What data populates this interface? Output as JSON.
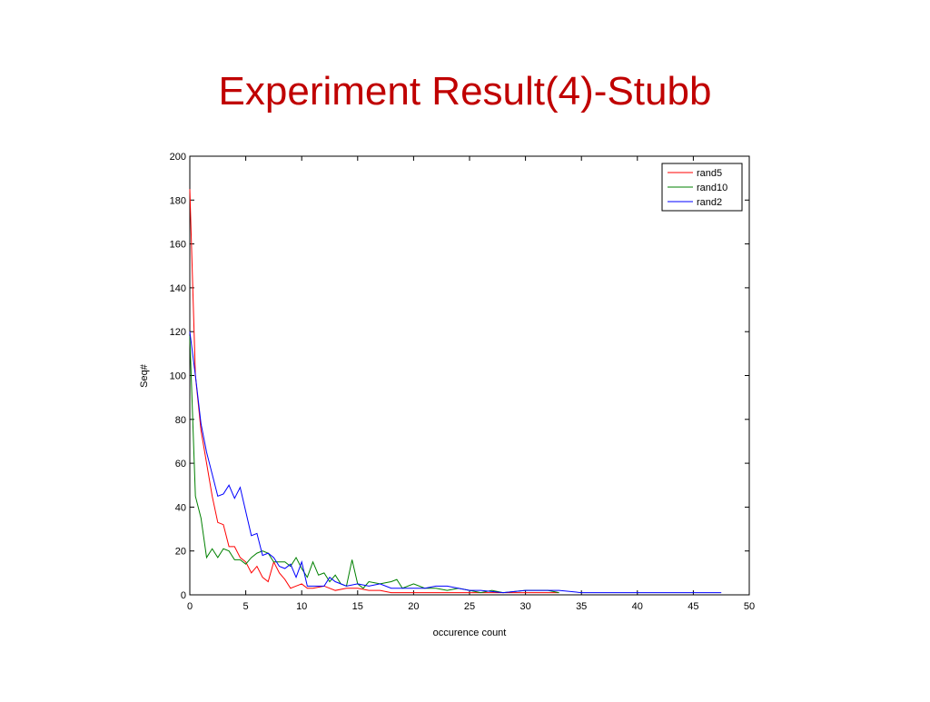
{
  "chart_data": {
    "type": "line",
    "title": "Experiment Result(4)-Stubb",
    "x_label": "occurence count",
    "y_label": "Seq#",
    "xlim": [
      0,
      50
    ],
    "ylim": [
      0,
      200
    ],
    "xticks": [
      0,
      5,
      10,
      15,
      20,
      25,
      30,
      35,
      40,
      45,
      50
    ],
    "yticks": [
      0,
      20,
      40,
      60,
      80,
      100,
      120,
      140,
      160,
      180,
      200
    ],
    "grid": false,
    "legend": "top-right",
    "series": [
      {
        "name": "rand5",
        "color": "#ff0000",
        "x": [
          0,
          0.5,
          1,
          1.5,
          2,
          2.5,
          3,
          3.5,
          4,
          4.5,
          5,
          5.5,
          6,
          6.5,
          7,
          7.5,
          8,
          8.5,
          9,
          9.5,
          10,
          10.5,
          11,
          12,
          13,
          14,
          15,
          16,
          17,
          18,
          20,
          22,
          25,
          28,
          30,
          33
        ],
        "values": [
          185,
          100,
          75,
          60,
          45,
          33,
          32,
          22,
          22,
          17,
          15,
          10,
          13,
          8,
          6,
          15,
          10,
          7,
          3,
          4,
          5,
          3,
          3,
          4,
          2,
          3,
          3,
          2,
          2,
          1,
          1,
          1,
          1,
          1,
          1,
          1
        ]
      },
      {
        "name": "rand10",
        "color": "#008000",
        "x": [
          0,
          0.5,
          1,
          1.5,
          2,
          2.5,
          3,
          3.5,
          4,
          4.5,
          5,
          5.5,
          6,
          6.5,
          7,
          7.5,
          8,
          8.5,
          9,
          9.5,
          10,
          10.5,
          11,
          11.5,
          12,
          12.5,
          13,
          13.5,
          14,
          14.5,
          15,
          15.5,
          16,
          17,
          18,
          18.5,
          19,
          20,
          21,
          22,
          23,
          24,
          25,
          26,
          27,
          28,
          30,
          32,
          33
        ],
        "values": [
          118,
          45,
          35,
          17,
          21,
          17,
          21,
          20,
          16,
          16,
          14,
          17,
          19,
          20,
          19,
          15,
          15,
          15,
          13,
          17,
          12,
          8,
          15,
          9,
          10,
          6,
          9,
          5,
          4,
          16,
          5,
          3,
          6,
          5,
          6,
          7,
          3,
          5,
          3,
          3,
          2,
          3,
          2,
          1,
          2,
          1,
          2,
          2,
          1
        ]
      },
      {
        "name": "rand2",
        "color": "#0000ff",
        "x": [
          0,
          0.5,
          1,
          1.5,
          2,
          2.5,
          3,
          3.5,
          4,
          4.5,
          5,
          5.5,
          6,
          6.5,
          7,
          7.5,
          8,
          8.5,
          9,
          9.5,
          10,
          10.5,
          11,
          12,
          12.5,
          13,
          14,
          15,
          16,
          17,
          18,
          19,
          20,
          21,
          22,
          23,
          24,
          25,
          26,
          28,
          30,
          32,
          33,
          35,
          40,
          45,
          47.5
        ],
        "values": [
          120,
          100,
          78,
          65,
          55,
          45,
          46,
          50,
          44,
          49,
          38,
          27,
          28,
          18,
          19,
          17,
          13,
          12,
          14,
          8,
          15,
          4,
          4,
          4,
          8,
          6,
          4,
          5,
          4,
          5,
          3,
          3,
          3,
          3,
          4,
          4,
          3,
          2,
          2,
          1,
          2,
          2,
          2,
          1,
          1,
          1,
          1
        ]
      }
    ]
  }
}
